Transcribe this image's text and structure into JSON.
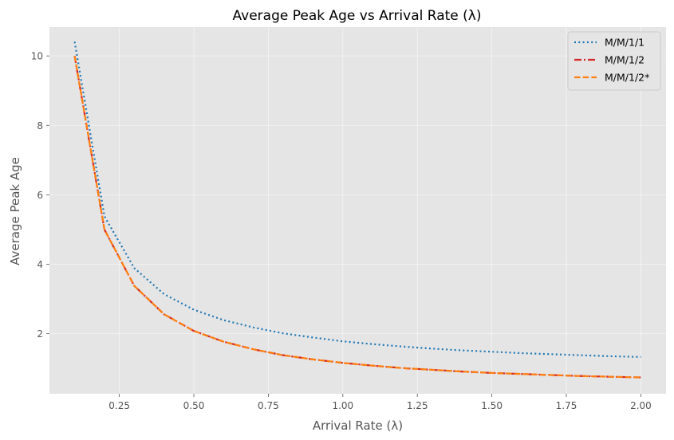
{
  "chart_data": {
    "type": "line",
    "title": "Average Peak Age vs Arrival Rate (λ)",
    "xlabel": "Arrival Rate (λ)",
    "ylabel": "Average Peak Age",
    "xlim": [
      0.0155,
      2.0845
    ],
    "ylim": [
      0.27,
      10.83
    ],
    "xticks": [
      0.25,
      0.5,
      0.75,
      1.0,
      1.25,
      1.5,
      1.75,
      2.0
    ],
    "xtick_labels": [
      "0.25",
      "0.50",
      "0.75",
      "1.00",
      "1.25",
      "1.50",
      "1.75",
      "2.00"
    ],
    "yticks": [
      2,
      4,
      6,
      8,
      10
    ],
    "ytick_labels": [
      "2",
      "4",
      "6",
      "8",
      "10"
    ],
    "grid": true,
    "legend_position": "top-right",
    "x": [
      0.1,
      0.2,
      0.3,
      0.4,
      0.5,
      0.6,
      0.7,
      0.8,
      0.9,
      1.0,
      1.1,
      1.2,
      1.3,
      1.4,
      1.5,
      1.6,
      1.7,
      1.8,
      1.9,
      2.0
    ],
    "series": [
      {
        "name": "M/M/1/1",
        "color": "#1f77b4",
        "dash": "dotted",
        "values": [
          10.41,
          5.38,
          3.89,
          3.14,
          2.69,
          2.39,
          2.18,
          2.01,
          1.89,
          1.78,
          1.7,
          1.63,
          1.57,
          1.52,
          1.48,
          1.44,
          1.41,
          1.38,
          1.35,
          1.33
        ]
      },
      {
        "name": "M/M/1/2",
        "color": "#d62728",
        "dash": "dashdot",
        "values": [
          10.0,
          5.0,
          3.38,
          2.56,
          2.08,
          1.77,
          1.55,
          1.38,
          1.26,
          1.16,
          1.08,
          1.01,
          0.96,
          0.91,
          0.87,
          0.84,
          0.81,
          0.78,
          0.76,
          0.74
        ]
      },
      {
        "name": "M/M/1/2*",
        "color": "#ff7f0e",
        "dash": "dashed",
        "values": [
          10.0,
          5.0,
          3.38,
          2.56,
          2.08,
          1.77,
          1.55,
          1.38,
          1.26,
          1.16,
          1.08,
          1.01,
          0.96,
          0.91,
          0.87,
          0.84,
          0.81,
          0.78,
          0.76,
          0.74
        ]
      }
    ]
  }
}
